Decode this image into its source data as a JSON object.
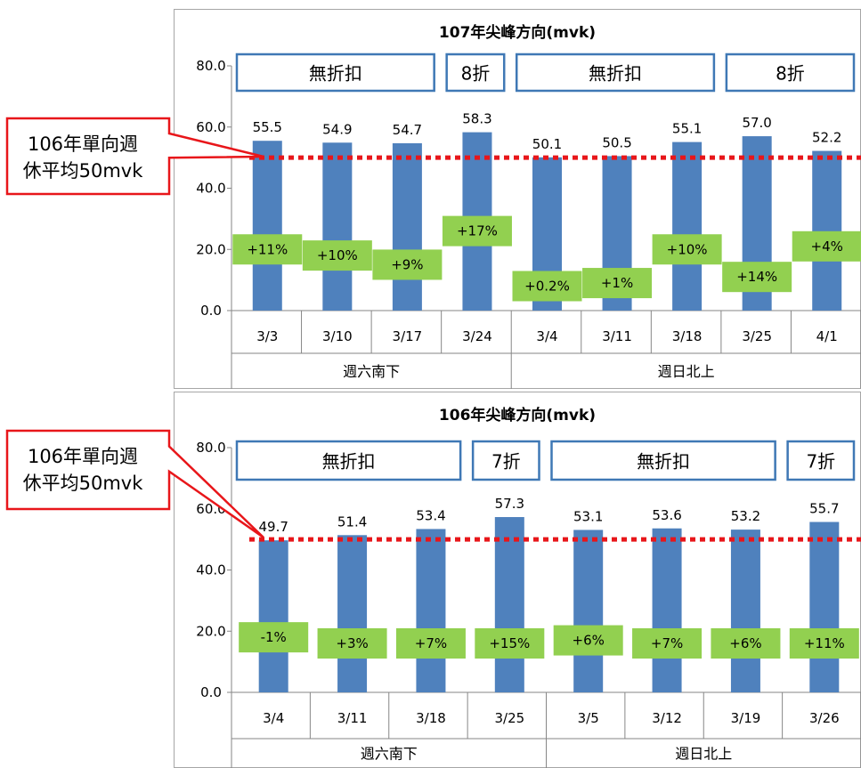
{
  "threshold": 50,
  "threshold_color": "#e8161a",
  "bar_color": "#4f81bd",
  "badge_color": "#92d050",
  "box_border_color": "#3f78b5",
  "callout_border_color": "#e8161a",
  "chart_data": [
    {
      "type": "bar",
      "title": "107年尖峰方向(mvk)",
      "categories": [
        "3/3",
        "3/10",
        "3/17",
        "3/24",
        "3/4",
        "3/11",
        "3/18",
        "3/25",
        "4/1"
      ],
      "values": [
        55.5,
        54.9,
        54.7,
        58.3,
        50.1,
        50.5,
        55.1,
        57.0,
        52.2
      ],
      "value_labels": [
        "55.5",
        "54.9",
        "54.7",
        "58.3",
        "50.1",
        "50.5",
        "55.1",
        "57.0",
        "52.2"
      ],
      "badges": [
        "+11%",
        "+10%",
        "+9%",
        "+17%",
        "+0.2%",
        "+1%",
        "+10%",
        "+14%",
        "+4%"
      ],
      "badge_levels": [
        20,
        18,
        15,
        26,
        8,
        9,
        20,
        11,
        21
      ],
      "groups": [
        {
          "label": "週六南下",
          "start": 0,
          "count": 4
        },
        {
          "label": "週日北上",
          "start": 4,
          "count": 5
        }
      ],
      "discount_boxes": [
        {
          "label": "無折扣",
          "start": 0,
          "count": 3
        },
        {
          "label": "8折",
          "start": 3,
          "count": 1
        },
        {
          "label": "無折扣",
          "start": 4,
          "count": 3
        },
        {
          "label": "8折",
          "start": 7,
          "count": 2
        }
      ],
      "y_ticks": [
        "0.0",
        "20.0",
        "40.0",
        "60.0",
        "80.0"
      ],
      "ylim": [
        0,
        80
      ],
      "callout": "106年單向週\n休平均50mvk"
    },
    {
      "type": "bar",
      "title": "106年尖峰方向(mvk)",
      "categories": [
        "3/4",
        "3/11",
        "3/18",
        "3/25",
        "3/5",
        "3/12",
        "3/19",
        "3/26"
      ],
      "values": [
        49.7,
        51.4,
        53.4,
        57.3,
        53.1,
        53.6,
        53.2,
        55.7
      ],
      "value_labels": [
        "49.7",
        "51.4",
        "53.4",
        "57.3",
        "53.1",
        "53.6",
        "53.2",
        "55.7"
      ],
      "badges": [
        "-1%",
        "+3%",
        "+7%",
        "+15%",
        "+6%",
        "+7%",
        "+6%",
        "+11%"
      ],
      "badge_levels": [
        18,
        16,
        16,
        16,
        17,
        16,
        16,
        16
      ],
      "groups": [
        {
          "label": "週六南下",
          "start": 0,
          "count": 4
        },
        {
          "label": "週日北上",
          "start": 4,
          "count": 4
        }
      ],
      "discount_boxes": [
        {
          "label": "無折扣",
          "start": 0,
          "count": 3
        },
        {
          "label": "7折",
          "start": 3,
          "count": 1
        },
        {
          "label": "無折扣",
          "start": 4,
          "count": 3
        },
        {
          "label": "7折",
          "start": 7,
          "count": 1
        }
      ],
      "y_ticks": [
        "0.0",
        "20.0",
        "40.0",
        "60.0",
        "80.0"
      ],
      "ylim": [
        0,
        80
      ],
      "callout": "106年單向週\n休平均50mvk"
    }
  ]
}
